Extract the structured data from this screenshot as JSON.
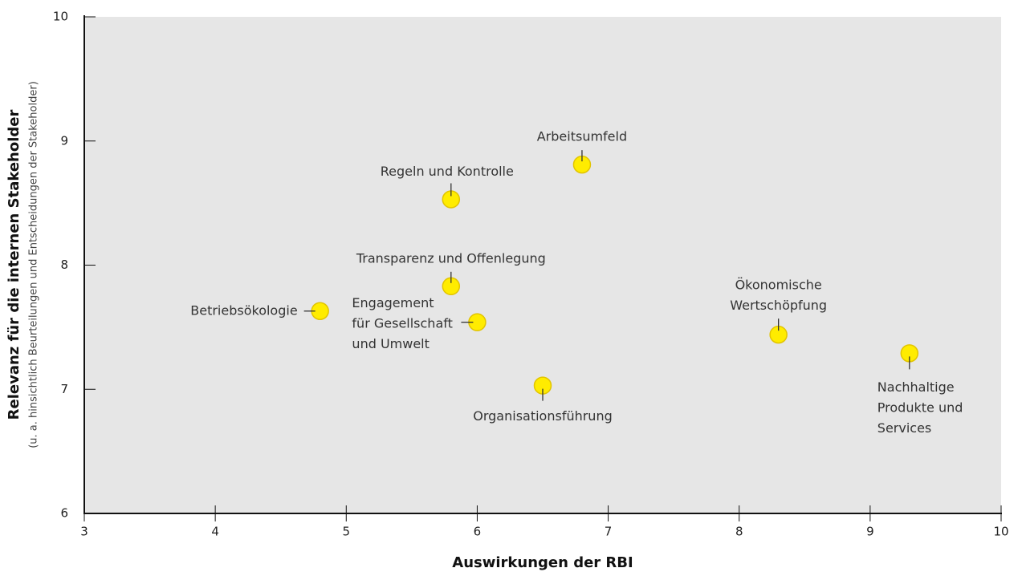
{
  "chart_data": {
    "type": "scatter",
    "x_label": "Auswirkungen der RBI",
    "y_label": "Relevanz für die internen Stakeholder",
    "y_sublabel": "(u. a. hinsichtlich Beurteilungen und Entscheidungen der Stakeholder)",
    "labels": [
      [
        "Betriebsökologie"
      ],
      [
        "Engagement",
        "für Gesellschaft",
        "und Umwelt"
      ],
      [
        "Transparenz und Offenlegung"
      ],
      [
        "Regeln und Kontrolle"
      ],
      [
        "Arbeitsumfeld"
      ],
      [
        "Organisationsführung"
      ],
      [
        "Ökonomische",
        "Wertschöpfung"
      ],
      [
        "Nachhaltige",
        "Produkte und",
        "Services"
      ]
    ],
    "x": [
      4.8,
      6.0,
      5.8,
      5.8,
      6.8,
      6.5,
      8.3,
      9.3
    ],
    "values": [
      7.63,
      7.54,
      7.83,
      8.53,
      8.81,
      7.03,
      7.44,
      7.29
    ],
    "color": "#ffec00",
    "xlim": [
      3,
      10
    ],
    "xticks": [
      3,
      4,
      5,
      6,
      7,
      8,
      9,
      10
    ],
    "ylim": [
      6,
      10
    ],
    "yticks": [
      6,
      7,
      8,
      9,
      10
    ]
  }
}
